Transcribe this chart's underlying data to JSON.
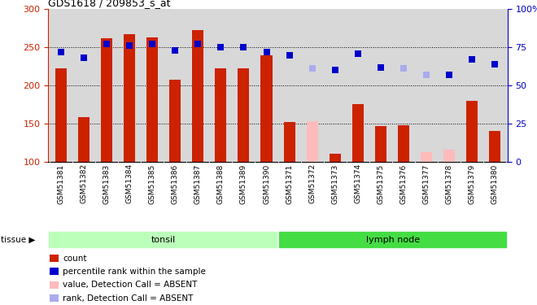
{
  "title": "GDS1618 / 209853_s_at",
  "samples": [
    "GSM51381",
    "GSM51382",
    "GSM51383",
    "GSM51384",
    "GSM51385",
    "GSM51386",
    "GSM51387",
    "GSM51388",
    "GSM51389",
    "GSM51390",
    "GSM51371",
    "GSM51372",
    "GSM51373",
    "GSM51374",
    "GSM51375",
    "GSM51376",
    "GSM51377",
    "GSM51378",
    "GSM51379",
    "GSM51380"
  ],
  "bar_values": [
    222,
    158,
    262,
    267,
    263,
    208,
    273,
    222,
    222,
    240,
    152,
    153,
    110,
    176,
    147,
    148,
    113,
    116,
    180,
    140
  ],
  "bar_colors": [
    "#cc2200",
    "#cc2200",
    "#cc2200",
    "#cc2200",
    "#cc2200",
    "#cc2200",
    "#cc2200",
    "#cc2200",
    "#cc2200",
    "#cc2200",
    "#cc2200",
    "#ffbbbb",
    "#cc2200",
    "#cc2200",
    "#cc2200",
    "#cc2200",
    "#ffbbbb",
    "#ffbbbb",
    "#cc2200",
    "#cc2200"
  ],
  "rank_values": [
    72,
    68,
    77,
    76,
    77,
    73,
    77,
    75,
    75,
    72,
    70,
    61,
    60,
    71,
    62,
    61,
    57,
    57,
    67,
    64
  ],
  "rank_colors": [
    "#0000cc",
    "#0000cc",
    "#0000cc",
    "#0000cc",
    "#0000cc",
    "#0000cc",
    "#0000cc",
    "#0000cc",
    "#0000cc",
    "#0000cc",
    "#0000cc",
    "#aaaaee",
    "#0000cc",
    "#0000cc",
    "#0000cc",
    "#aaaaee",
    "#aaaaee",
    "#0000cc",
    "#0000cc",
    "#0000cc"
  ],
  "ylim_left": [
    100,
    300
  ],
  "ylim_right": [
    0,
    100
  ],
  "yticks_left": [
    100,
    150,
    200,
    250,
    300
  ],
  "yticks_right": [
    0,
    25,
    50,
    75,
    100
  ],
  "ytick_labels_right": [
    "0",
    "25",
    "50",
    "75",
    "100%"
  ],
  "tonsil_color": "#bbffbb",
  "lymph_color": "#44dd44",
  "tissue_groups": [
    {
      "label": "tonsil",
      "start": 0,
      "end": 10
    },
    {
      "label": "lymph node",
      "start": 10,
      "end": 20
    }
  ],
  "legend_items": [
    {
      "label": "count",
      "color": "#cc2200"
    },
    {
      "label": "percentile rank within the sample",
      "color": "#0000cc"
    },
    {
      "label": "value, Detection Call = ABSENT",
      "color": "#ffbbbb"
    },
    {
      "label": "rank, Detection Call = ABSENT",
      "color": "#aaaaee"
    }
  ],
  "bar_width": 0.5,
  "dot_size": 28,
  "bg_color": "#d8d8d8"
}
